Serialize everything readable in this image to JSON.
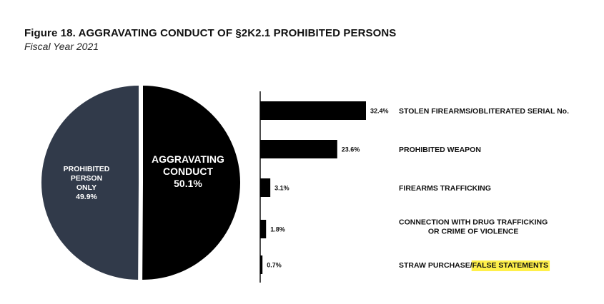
{
  "figure": {
    "title": "Figure 18.  AGGRAVATING CONDUCT OF §2K2.1 PROHIBITED PERSONS",
    "subtitle": "Fiscal Year 2021"
  },
  "colors": {
    "pie_left": "#313a4a",
    "pie_right": "#000000",
    "bars": "#000000",
    "axis": "#000000",
    "highlight": "#fff04a"
  },
  "chart_data": [
    {
      "type": "pie",
      "slices": [
        {
          "label_lines": [
            "PROHIBITED",
            "PERSON",
            "ONLY"
          ],
          "value_label": "49.9%",
          "value": 49.9,
          "color": "#313a4a"
        },
        {
          "label_lines": [
            "AGGRAVATING",
            "CONDUCT"
          ],
          "value_label": "50.1%",
          "value": 50.1,
          "color": "#000000"
        }
      ]
    },
    {
      "type": "bar",
      "orientation": "horizontal",
      "xlim": [
        0,
        45
      ],
      "bars": [
        {
          "lines": [
            "STOLEN FIREARMS/OBLITERATED SERIAL No."
          ],
          "value": 32.4,
          "value_label": "32.4%"
        },
        {
          "lines": [
            "PROHIBITED WEAPON"
          ],
          "value": 23.6,
          "value_label": "23.6%"
        },
        {
          "lines": [
            "FIREARMS TRAFFICKING"
          ],
          "value": 3.1,
          "value_label": "3.1%"
        },
        {
          "lines": [
            "CONNECTION WITH DRUG TRAFFICKING",
            "OR CRIME OF VIOLENCE"
          ],
          "value": 1.8,
          "value_label": "1.8%"
        },
        {
          "lines": [
            "STRAW PURCHASE/FALSE STATEMENTS"
          ],
          "value": 0.7,
          "value_label": "0.7%",
          "highlight_text": "FALSE STATEMENTS"
        }
      ]
    }
  ]
}
